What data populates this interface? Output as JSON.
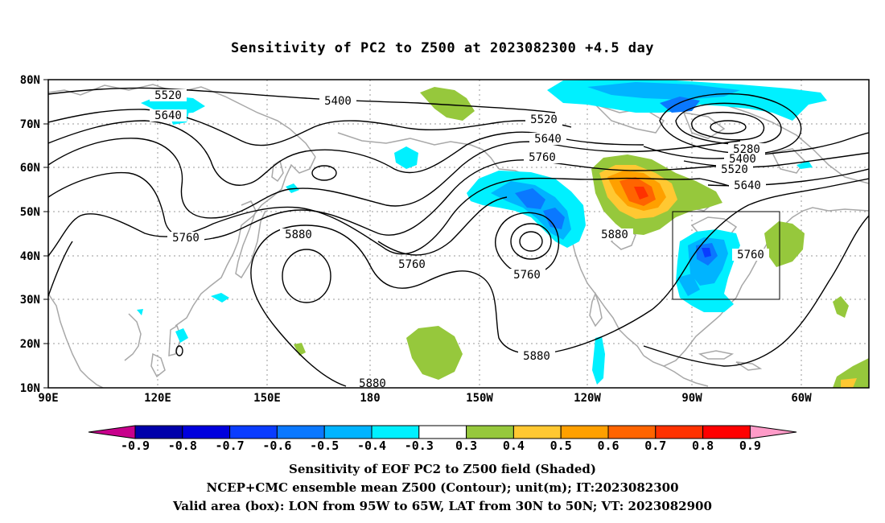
{
  "title": "Sensitivity of PC2 to Z500 at 2023082300 +4.5 day",
  "axes": {
    "lat_ticks": [
      "80N",
      "70N",
      "60N",
      "50N",
      "40N",
      "30N",
      "20N",
      "10N"
    ],
    "lon_ticks": [
      "90E",
      "120E",
      "150E",
      "180",
      "150W",
      "120W",
      "90W",
      "60W"
    ]
  },
  "contour_labels": [
    "5520",
    "5640",
    "5400",
    "5520",
    "5640",
    "5760",
    "5280",
    "5400",
    "5520",
    "5640",
    "5760",
    "5880",
    "5880",
    "5760",
    "5760",
    "5880",
    "5760",
    "5880",
    "5880"
  ],
  "valid_box": {
    "lon_from": "95W",
    "lon_to": "65W",
    "lat_from": "30N",
    "lat_to": "50N"
  },
  "colorbar": {
    "labels": [
      "-0.9",
      "-0.8",
      "-0.7",
      "-0.6",
      "-0.5",
      "-0.4",
      "-0.3",
      "0.3",
      "0.4",
      "0.5",
      "0.6",
      "0.7",
      "0.8",
      "0.9"
    ],
    "colors": [
      "#0000aa",
      "#0000dd",
      "#0a3cff",
      "#0a78ff",
      "#00b4ff",
      "#00f0ff",
      "#ffffff",
      "#96c83c",
      "#ffc832",
      "#ffa000",
      "#ff6400",
      "#ff3200",
      "#ff0000"
    ],
    "low_arrow_color": "#c8008c",
    "high_arrow_color": "#ff9bc8"
  },
  "captions": {
    "line1": "Sensitivity of EOF PC2 to Z500 field (Shaded)",
    "line2": "NCEP+CMC ensemble mean Z500 (Contour); unit(m); IT:2023082300",
    "line3": "Valid area (box): LON from 95W to 65W, LAT from 30N to 50N; VT: 2023082900"
  }
}
